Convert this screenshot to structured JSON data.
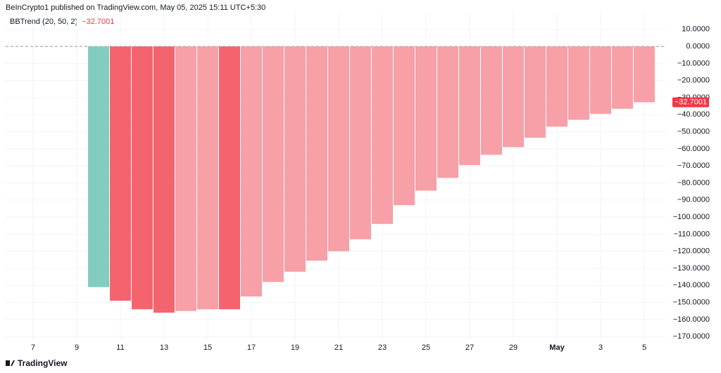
{
  "header": "BeInCrypto1 published on TradingView.com, May 05, 2025 15:11 UTC+5:30",
  "footer": "TradingView",
  "chart_data": {
    "type": "bar",
    "title": "BBTrend (20, 50, 2)",
    "categories": [
      "7",
      null,
      "9",
      null,
      "11",
      null,
      "13",
      null,
      "15",
      null,
      "17",
      null,
      "19",
      null,
      "21",
      null,
      "23",
      null,
      "25",
      null,
      "27",
      null,
      "29",
      null,
      "May",
      null,
      "3",
      null,
      "5"
    ],
    "series": [
      {
        "name": "BBTrend",
        "values": [
          null,
          null,
          null,
          -141,
          -149,
          -154,
          -156,
          -155,
          -154,
          -154,
          -146.5,
          -138,
          -132,
          -125.5,
          -120,
          -113,
          -104,
          -93,
          -84.5,
          -77,
          -69.5,
          -63.5,
          -59,
          -53.5,
          -47,
          -43,
          -39.5,
          -36.5,
          -32.7001
        ],
        "value_labels": [
          null,
          null,
          null,
          null,
          null,
          null,
          null,
          null,
          null,
          null,
          null,
          null,
          null,
          null,
          null,
          null,
          null,
          null,
          null,
          null,
          null,
          null,
          null,
          null,
          null,
          null,
          null,
          null,
          "−32.7001"
        ],
        "colors": [
          null,
          null,
          null,
          "#82cdbf",
          "#f4646f",
          "#f4646f",
          "#f4646f",
          "#f7a0a7",
          "#f7a0a7",
          "#f4646f",
          "#f7a0a7",
          "#f7a0a7",
          "#f7a0a7",
          "#f7a0a7",
          "#f7a0a7",
          "#f7a0a7",
          "#f7a0a7",
          "#f7a0a7",
          "#f7a0a7",
          "#f7a0a7",
          "#f7a0a7",
          "#f7a0a7",
          "#f7a0a7",
          "#f7a0a7",
          "#f7a0a7",
          "#f7a0a7",
          "#f7a0a7",
          "#f7a0a7",
          "#f7a0a7"
        ]
      }
    ],
    "label_color": "#f23645",
    "ylim": [
      -172.4,
      19.8
    ],
    "yticks": [
      {
        "value": 10,
        "label": "10.0000"
      },
      {
        "value": 0,
        "label": "0.0000"
      },
      {
        "value": -10,
        "label": "−10.0000"
      },
      {
        "value": -20,
        "label": "−20.0000"
      },
      {
        "value": -30,
        "label": "−30.0000"
      },
      {
        "value": -40,
        "label": "−40.0000"
      },
      {
        "value": -50,
        "label": "−50.0000"
      },
      {
        "value": -60,
        "label": "−60.0000"
      },
      {
        "value": -70,
        "label": "−70.0000"
      },
      {
        "value": -80,
        "label": "−80.0000"
      },
      {
        "value": -90,
        "label": "−90.0000"
      },
      {
        "value": -100,
        "label": "−100.0000"
      },
      {
        "value": -110,
        "label": "−110.0000"
      },
      {
        "value": -120,
        "label": "−120.0000"
      },
      {
        "value": -130,
        "label": "−130.0000"
      },
      {
        "value": -140,
        "label": "−140.0000"
      },
      {
        "value": -150,
        "label": "−150.0000"
      },
      {
        "value": -160,
        "label": "−160.0000"
      },
      {
        "value": -170,
        "label": "−170.0000"
      }
    ],
    "grid": true
  }
}
